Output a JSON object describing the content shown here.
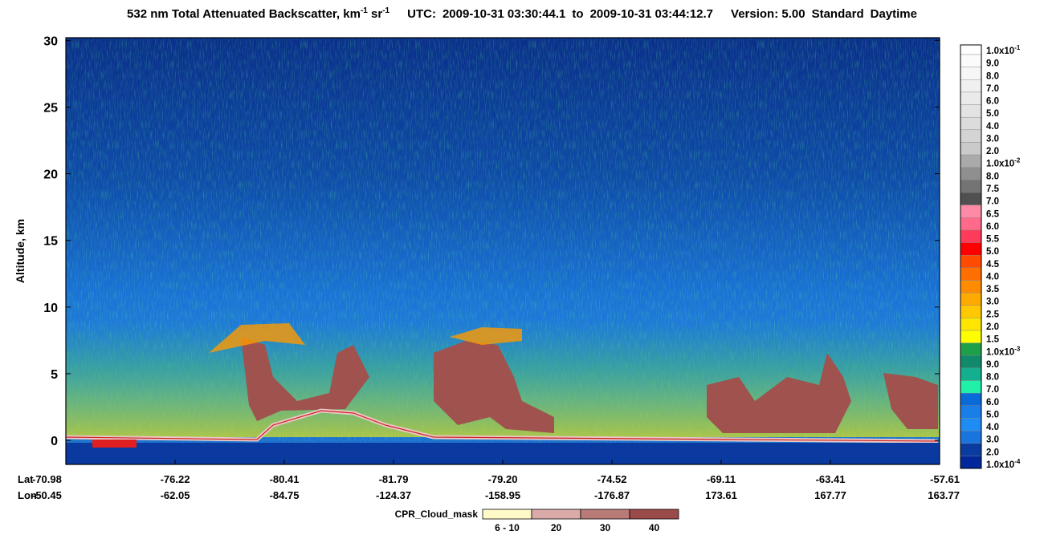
{
  "chart_data": {
    "type": "curtain",
    "title_parts": [
      "532 nm Total Attenuated Backscatter, km",
      "-1",
      " sr",
      "-1"
    ],
    "utc_label": "UTC:",
    "start_time": "2009-10-31 03:30:44.1",
    "to_label": "to",
    "end_time": "2009-10-31 03:44:12.7",
    "version": "Version: 5.00",
    "mode": "Standard",
    "daytime": "Daytime",
    "y_label": "Altitude, km",
    "ylim": [
      -1.8,
      30.2
    ],
    "yticks": [
      0,
      5,
      10,
      15,
      20,
      25,
      30
    ],
    "lat_label": "Lat",
    "lon_label": "Lon",
    "lat": [
      "-70.98",
      "-76.22",
      "-80.41",
      "-81.79",
      "-79.20",
      "-74.52",
      "-69.11",
      "-63.41",
      "-57.61"
    ],
    "lon": [
      "-50.45",
      "-62.05",
      "-84.75",
      "-124.37",
      "-158.95",
      "-176.87",
      "173.61",
      "167.77",
      "163.77"
    ],
    "colorbar": {
      "labels": [
        {
          "text": "1.0x10",
          "sup": "-1"
        },
        {
          "text": "9.0"
        },
        {
          "text": "8.0"
        },
        {
          "text": "7.0"
        },
        {
          "text": "6.0"
        },
        {
          "text": "5.0"
        },
        {
          "text": "4.0"
        },
        {
          "text": "3.0"
        },
        {
          "text": "2.0"
        },
        {
          "text": "1.0x10",
          "sup": "-2"
        },
        {
          "text": "8.0"
        },
        {
          "text": "7.5"
        },
        {
          "text": "7.0"
        },
        {
          "text": "6.5"
        },
        {
          "text": "6.0"
        },
        {
          "text": "5.5"
        },
        {
          "text": "5.0"
        },
        {
          "text": "4.5"
        },
        {
          "text": "4.0"
        },
        {
          "text": "3.5"
        },
        {
          "text": "3.0"
        },
        {
          "text": "2.5"
        },
        {
          "text": "2.0"
        },
        {
          "text": "1.5"
        },
        {
          "text": "1.0x10",
          "sup": "-3"
        },
        {
          "text": "9.0"
        },
        {
          "text": "8.0"
        },
        {
          "text": "7.0"
        },
        {
          "text": "6.0"
        },
        {
          "text": "5.0"
        },
        {
          "text": "4.0"
        },
        {
          "text": "3.0"
        },
        {
          "text": "2.0"
        },
        {
          "text": "1.0x10",
          "sup": "-4"
        }
      ],
      "colors": [
        "#ffffff",
        "#fbfbfb",
        "#f6f6f6",
        "#f0f0f0",
        "#eaeaea",
        "#e3e3e3",
        "#dcdcdc",
        "#d4d4d4",
        "#cacaca",
        "#aaaaaa",
        "#8f8f8f",
        "#747474",
        "#505050",
        "#ff8aa8",
        "#ff6a8a",
        "#ff3a5a",
        "#ff0000",
        "#ff4a00",
        "#ff6e00",
        "#ff8c00",
        "#ffaa00",
        "#ffc800",
        "#ffe600",
        "#ffff00",
        "#1ea04a",
        "#108a6a",
        "#12b08e",
        "#20f0a8",
        "#0a6ad8",
        "#1a7ee8",
        "#1e8cf2",
        "#1a74de",
        "#0a3ca0",
        "#00289a"
      ]
    },
    "cloud_mask": {
      "title": "CPR_Cloud_mask",
      "categories": [
        "6 - 10",
        "20",
        "30",
        "40"
      ],
      "colors": [
        "#fffac8",
        "#d9aaa8",
        "#b97b78",
        "#9a4a48"
      ]
    }
  }
}
